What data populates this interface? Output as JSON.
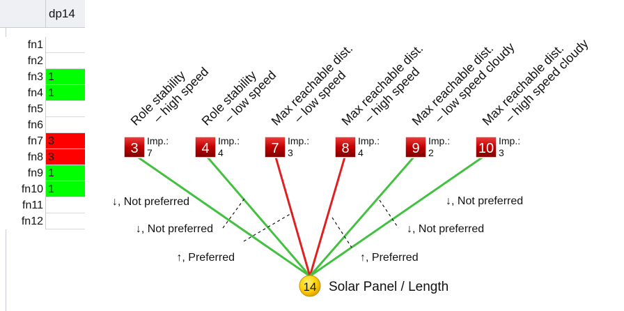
{
  "sheet": {
    "column_header": "dp14",
    "rows": [
      {
        "label": "fn1",
        "value": "",
        "color": ""
      },
      {
        "label": "fn2",
        "value": "",
        "color": ""
      },
      {
        "label": "fn3",
        "value": "1",
        "color": "#00ff00"
      },
      {
        "label": "fn4",
        "value": "1",
        "color": "#00ff00"
      },
      {
        "label": "fn5",
        "value": "",
        "color": ""
      },
      {
        "label": "fn6",
        "value": "",
        "color": ""
      },
      {
        "label": "fn7",
        "value": "3",
        "color": "#ff0000"
      },
      {
        "label": "fn8",
        "value": "3",
        "color": "#ff0000"
      },
      {
        "label": "fn9",
        "value": "1",
        "color": "#00ff00"
      },
      {
        "label": "fn10",
        "value": "1",
        "color": "#00ff00"
      },
      {
        "label": "fn11",
        "value": "",
        "color": ""
      },
      {
        "label": "fn12",
        "value": "",
        "color": ""
      }
    ]
  },
  "diagram": {
    "colors": {
      "preferred_link": "#44c040",
      "not_preferred_link": "#e02020",
      "node_red": "#c00000",
      "target_yellow": "#ffd000"
    },
    "functions": [
      {
        "id": "3",
        "title_line1": "Role stability",
        "title_line2": "– high speed",
        "imp_label": "Imp.:",
        "imp_value": "7",
        "link": "preferred"
      },
      {
        "id": "4",
        "title_line1": "Role stability",
        "title_line2": "– low speed",
        "imp_label": "Imp.:",
        "imp_value": "4",
        "link": "preferred"
      },
      {
        "id": "7",
        "title_line1": "Max reachable dist.",
        "title_line2": "– low speed",
        "imp_label": "Imp.:",
        "imp_value": "3",
        "link": "not_preferred"
      },
      {
        "id": "8",
        "title_line1": "Max reachable dist.",
        "title_line2": "– high speed",
        "imp_label": "Imp.:",
        "imp_value": "4",
        "link": "not_preferred"
      },
      {
        "id": "9",
        "title_line1": "Max reachable dist.",
        "title_line2": "– low speed cloudy",
        "imp_label": "Imp.:",
        "imp_value": "2",
        "link": "preferred"
      },
      {
        "id": "10",
        "title_line1": "Max reachable dist.",
        "title_line2": "– high speed cloudy",
        "imp_label": "Imp.:",
        "imp_value": "3",
        "link": "preferred"
      }
    ],
    "target": {
      "id": "14",
      "label": "Solar Panel / Length"
    },
    "annotations": [
      {
        "text": "↓, Not preferred"
      },
      {
        "text": "↓, Not preferred"
      },
      {
        "text": "↑, Preferred"
      },
      {
        "text": "↓, Not preferred"
      },
      {
        "text": "↓, Not preferred"
      },
      {
        "text": "↑, Preferred"
      }
    ]
  }
}
